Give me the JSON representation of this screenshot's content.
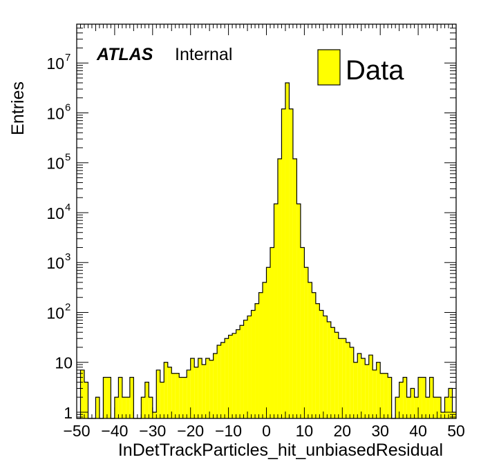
{
  "chart_data": {
    "type": "histogram",
    "xlabel": "InDetTrackParticles_hit_unbiasedResidual",
    "ylabel": "Entries",
    "xlim": [
      -50,
      50
    ],
    "ylim": [
      0.75,
      60000000
    ],
    "yscale": "log",
    "bin_width": 1,
    "bin_edges_start": -50,
    "x_ticks": [
      -50,
      -40,
      -30,
      -20,
      -10,
      0,
      10,
      20,
      30,
      40,
      50
    ],
    "x_tick_labels": [
      "−50",
      "−40",
      "−30",
      "−20",
      "−10",
      "0",
      "10",
      "20",
      "30",
      "40",
      "50"
    ],
    "y_ticks": [
      1,
      10,
      100,
      1000,
      10000,
      100000,
      1000000,
      10000000
    ],
    "y_tick_labels": [
      {
        "base": "1",
        "exp": ""
      },
      {
        "base": "10",
        "exp": ""
      },
      {
        "base": "10",
        "exp": "2"
      },
      {
        "base": "10",
        "exp": "3"
      },
      {
        "base": "10",
        "exp": "4"
      },
      {
        "base": "10",
        "exp": "5"
      },
      {
        "base": "10",
        "exp": "6"
      },
      {
        "base": "10",
        "exp": "7"
      }
    ],
    "annotation_bold": "ATLAS",
    "annotation_text": "Internal",
    "series": [
      {
        "name": "Data",
        "fill": "#ffff00",
        "edge": "#000000",
        "values": [
          0,
          7,
          4,
          0,
          0,
          2,
          0,
          5,
          5,
          0,
          2,
          5,
          2,
          2,
          5,
          0,
          0,
          2,
          4,
          2,
          1,
          7,
          4,
          10,
          8,
          6,
          6,
          5,
          5,
          7,
          12,
          8,
          12,
          9,
          12,
          11,
          15,
          22,
          25,
          30,
          35,
          38,
          45,
          55,
          70,
          85,
          110,
          150,
          250,
          400,
          800,
          2000,
          15000,
          120000,
          1200000,
          4000000,
          1200000,
          120000,
          15000,
          2000,
          800,
          400,
          250,
          150,
          110,
          85,
          65,
          50,
          40,
          30,
          30,
          25,
          20,
          10,
          15,
          12,
          9,
          14,
          7,
          10,
          6,
          6,
          5,
          0,
          2,
          4,
          5,
          2,
          3,
          2,
          5,
          5,
          2,
          5,
          2,
          2,
          1,
          2,
          3,
          1
        ]
      }
    ],
    "legend_position": "top-right",
    "grid": false
  }
}
